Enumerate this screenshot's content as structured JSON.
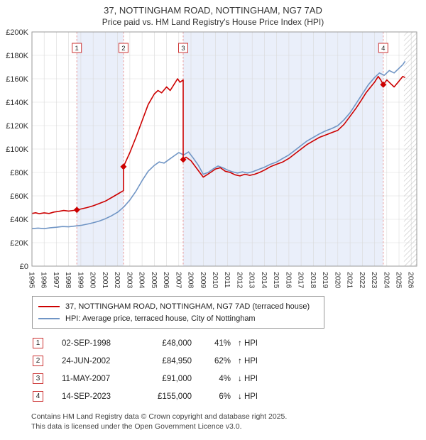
{
  "title": "37, NOTTINGHAM ROAD, NOTTINGHAM, NG7 7AD",
  "subtitle": "Price paid vs. HM Land Registry's House Price Index (HPI)",
  "legend": {
    "items": [
      {
        "label": "37, NOTTINGHAM ROAD, NOTTINGHAM, NG7 7AD (terraced house)",
        "color": "#cc0000"
      },
      {
        "label": "HPI: Average price, terraced house, City of Nottingham",
        "color": "#7095c5"
      }
    ]
  },
  "table": {
    "rows": [
      {
        "num": "1",
        "date": "02-SEP-1998",
        "price": "£48,000",
        "pct": "41%",
        "rel": "↑ HPI"
      },
      {
        "num": "2",
        "date": "24-JUN-2002",
        "price": "£84,950",
        "pct": "62%",
        "rel": "↑ HPI"
      },
      {
        "num": "3",
        "date": "11-MAY-2007",
        "price": "£91,000",
        "pct": "4%",
        "rel": "↓ HPI"
      },
      {
        "num": "4",
        "date": "14-SEP-2023",
        "price": "£155,000",
        "pct": "6%",
        "rel": "↓ HPI"
      }
    ]
  },
  "footer": {
    "line1": "Contains HM Land Registry data © Crown copyright and database right 2025.",
    "line2": "This data is licensed under the Open Government Licence v3.0."
  },
  "chart_data": {
    "type": "line",
    "title": "37, NOTTINGHAM ROAD, NOTTINGHAM, NG7 7AD",
    "subtitle": "Price paid vs. HM Land Registry's House Price Index (HPI)",
    "xlim": [
      1995,
      2026.45
    ],
    "ylim": [
      0,
      200000
    ],
    "grid": true,
    "legend_position": "bottom",
    "x_ticks": [
      1995,
      1996,
      1997,
      1998,
      1999,
      2000,
      2001,
      2002,
      2003,
      2004,
      2005,
      2006,
      2007,
      2008,
      2009,
      2010,
      2011,
      2012,
      2013,
      2014,
      2015,
      2016,
      2017,
      2018,
      2019,
      2020,
      2021,
      2022,
      2023,
      2024,
      2025,
      2026
    ],
    "y_ticks": [
      {
        "v": 0,
        "label": "£0"
      },
      {
        "v": 20000,
        "label": "£20K"
      },
      {
        "v": 40000,
        "label": "£40K"
      },
      {
        "v": 60000,
        "label": "£60K"
      },
      {
        "v": 80000,
        "label": "£80K"
      },
      {
        "v": 100000,
        "label": "£100K"
      },
      {
        "v": 120000,
        "label": "£120K"
      },
      {
        "v": 140000,
        "label": "£140K"
      },
      {
        "v": 160000,
        "label": "£160K"
      },
      {
        "v": 180000,
        "label": "£180K"
      },
      {
        "v": 200000,
        "label": "£200K"
      }
    ],
    "ownership_bands": [
      [
        1998.67,
        2002.48
      ],
      [
        2007.36,
        2023.71
      ]
    ],
    "hatch_start": 2025.4,
    "colors": {
      "red": "#cc0000",
      "blue": "#7095c5",
      "band": "#eaeffa",
      "grid": "#d9d9d9",
      "sale_line": "#e89898",
      "hatch": "#c8c8c8",
      "border": "#999999"
    },
    "sales": [
      {
        "n": 1,
        "x": 1998.67,
        "price": 48000,
        "date": "02-SEP-1998",
        "pct": "41%",
        "rel": "↑ HPI"
      },
      {
        "n": 2,
        "x": 2002.48,
        "price": 84950,
        "date": "24-JUN-2002",
        "pct": "62%",
        "rel": "↑ HPI"
      },
      {
        "n": 3,
        "x": 2007.36,
        "price": 91000,
        "date": "11-MAY-2007",
        "pct": "4%",
        "rel": "↓ HPI"
      },
      {
        "n": 4,
        "x": 2023.71,
        "price": 155000,
        "date": "14-SEP-2023",
        "pct": "6%",
        "rel": "↓ HPI"
      }
    ],
    "series": [
      {
        "name": "37, NOTTINGHAM ROAD, NOTTINGHAM, NG7 7AD (terraced house)",
        "color": "#cc0000",
        "points": [
          [
            1995.0,
            45000
          ],
          [
            1995.3,
            45600
          ],
          [
            1995.6,
            44800
          ],
          [
            1996.0,
            45500
          ],
          [
            1996.4,
            45000
          ],
          [
            1996.8,
            46200
          ],
          [
            1997.2,
            46800
          ],
          [
            1997.6,
            47500
          ],
          [
            1998.0,
            47000
          ],
          [
            1998.4,
            47600
          ],
          [
            1998.67,
            48000
          ],
          [
            1999.0,
            48800
          ],
          [
            1999.5,
            50000
          ],
          [
            2000.0,
            51500
          ],
          [
            2000.5,
            53500
          ],
          [
            2001.0,
            55500
          ],
          [
            2001.5,
            58500
          ],
          [
            2002.0,
            61500
          ],
          [
            2002.48,
            64500
          ],
          [
            2002.48,
            84950
          ],
          [
            2003.0,
            97000
          ],
          [
            2003.5,
            110000
          ],
          [
            2004.0,
            124000
          ],
          [
            2004.5,
            138000
          ],
          [
            2005.0,
            147000
          ],
          [
            2005.3,
            150000
          ],
          [
            2005.6,
            148000
          ],
          [
            2006.0,
            153000
          ],
          [
            2006.3,
            150000
          ],
          [
            2006.6,
            155000
          ],
          [
            2006.9,
            160000
          ],
          [
            2007.1,
            157000
          ],
          [
            2007.36,
            159000
          ],
          [
            2007.36,
            91000
          ],
          [
            2007.6,
            93000
          ],
          [
            2008.0,
            90000
          ],
          [
            2008.5,
            83000
          ],
          [
            2009.0,
            76000
          ],
          [
            2009.3,
            78000
          ],
          [
            2009.6,
            80000
          ],
          [
            2010.0,
            83000
          ],
          [
            2010.4,
            84000
          ],
          [
            2010.8,
            81000
          ],
          [
            2011.2,
            80000
          ],
          [
            2011.6,
            78000
          ],
          [
            2012.0,
            77000
          ],
          [
            2012.4,
            78500
          ],
          [
            2012.8,
            77500
          ],
          [
            2013.2,
            78500
          ],
          [
            2013.6,
            80000
          ],
          [
            2014.0,
            82000
          ],
          [
            2014.5,
            85000
          ],
          [
            2015.0,
            87000
          ],
          [
            2015.5,
            89000
          ],
          [
            2016.0,
            92000
          ],
          [
            2016.5,
            96000
          ],
          [
            2017.0,
            100000
          ],
          [
            2017.5,
            104000
          ],
          [
            2018.0,
            107000
          ],
          [
            2018.5,
            110000
          ],
          [
            2019.0,
            112000
          ],
          [
            2019.5,
            114000
          ],
          [
            2020.0,
            116000
          ],
          [
            2020.5,
            121000
          ],
          [
            2021.0,
            128000
          ],
          [
            2021.5,
            135000
          ],
          [
            2022.0,
            143000
          ],
          [
            2022.3,
            148000
          ],
          [
            2022.6,
            152000
          ],
          [
            2023.0,
            157000
          ],
          [
            2023.3,
            162000
          ],
          [
            2023.5,
            159000
          ],
          [
            2023.71,
            155000
          ],
          [
            2024.0,
            159000
          ],
          [
            2024.3,
            156000
          ],
          [
            2024.6,
            153000
          ],
          [
            2025.0,
            158000
          ],
          [
            2025.3,
            162000
          ],
          [
            2025.5,
            161000
          ]
        ]
      },
      {
        "name": "HPI: Average price, terraced house, City of Nottingham",
        "color": "#7095c5",
        "points": [
          [
            1995.0,
            32000
          ],
          [
            1995.5,
            32500
          ],
          [
            1996.0,
            32000
          ],
          [
            1996.5,
            32800
          ],
          [
            1997.0,
            33200
          ],
          [
            1997.5,
            33800
          ],
          [
            1998.0,
            33600
          ],
          [
            1998.5,
            34200
          ],
          [
            1999.0,
            34800
          ],
          [
            1999.5,
            35800
          ],
          [
            2000.0,
            37000
          ],
          [
            2000.5,
            38500
          ],
          [
            2001.0,
            40500
          ],
          [
            2001.5,
            43000
          ],
          [
            2002.0,
            46000
          ],
          [
            2002.5,
            50500
          ],
          [
            2003.0,
            56500
          ],
          [
            2003.5,
            64000
          ],
          [
            2004.0,
            73000
          ],
          [
            2004.5,
            81000
          ],
          [
            2005.0,
            86000
          ],
          [
            2005.4,
            89000
          ],
          [
            2005.8,
            88000
          ],
          [
            2006.2,
            91000
          ],
          [
            2006.6,
            94000
          ],
          [
            2007.0,
            97000
          ],
          [
            2007.4,
            95000
          ],
          [
            2007.8,
            97500
          ],
          [
            2008.2,
            92000
          ],
          [
            2008.6,
            86000
          ],
          [
            2009.0,
            78500
          ],
          [
            2009.4,
            80000
          ],
          [
            2009.8,
            83000
          ],
          [
            2010.2,
            85500
          ],
          [
            2010.6,
            84000
          ],
          [
            2011.0,
            82000
          ],
          [
            2011.4,
            80500
          ],
          [
            2011.8,
            79500
          ],
          [
            2012.2,
            80500
          ],
          [
            2012.6,
            79500
          ],
          [
            2013.0,
            80500
          ],
          [
            2013.5,
            82500
          ],
          [
            2014.0,
            84500
          ],
          [
            2014.5,
            87000
          ],
          [
            2015.0,
            89000
          ],
          [
            2015.5,
            92000
          ],
          [
            2016.0,
            95000
          ],
          [
            2016.5,
            99000
          ],
          [
            2017.0,
            103000
          ],
          [
            2017.5,
            107000
          ],
          [
            2018.0,
            110000
          ],
          [
            2018.5,
            113000
          ],
          [
            2019.0,
            115500
          ],
          [
            2019.5,
            117500
          ],
          [
            2020.0,
            120000
          ],
          [
            2020.5,
            125000
          ],
          [
            2021.0,
            131000
          ],
          [
            2021.5,
            139000
          ],
          [
            2022.0,
            147000
          ],
          [
            2022.5,
            155000
          ],
          [
            2023.0,
            161000
          ],
          [
            2023.4,
            165000
          ],
          [
            2023.8,
            163000
          ],
          [
            2024.2,
            167000
          ],
          [
            2024.6,
            165000
          ],
          [
            2025.0,
            169000
          ],
          [
            2025.3,
            172000
          ],
          [
            2025.5,
            175000
          ]
        ]
      }
    ]
  }
}
